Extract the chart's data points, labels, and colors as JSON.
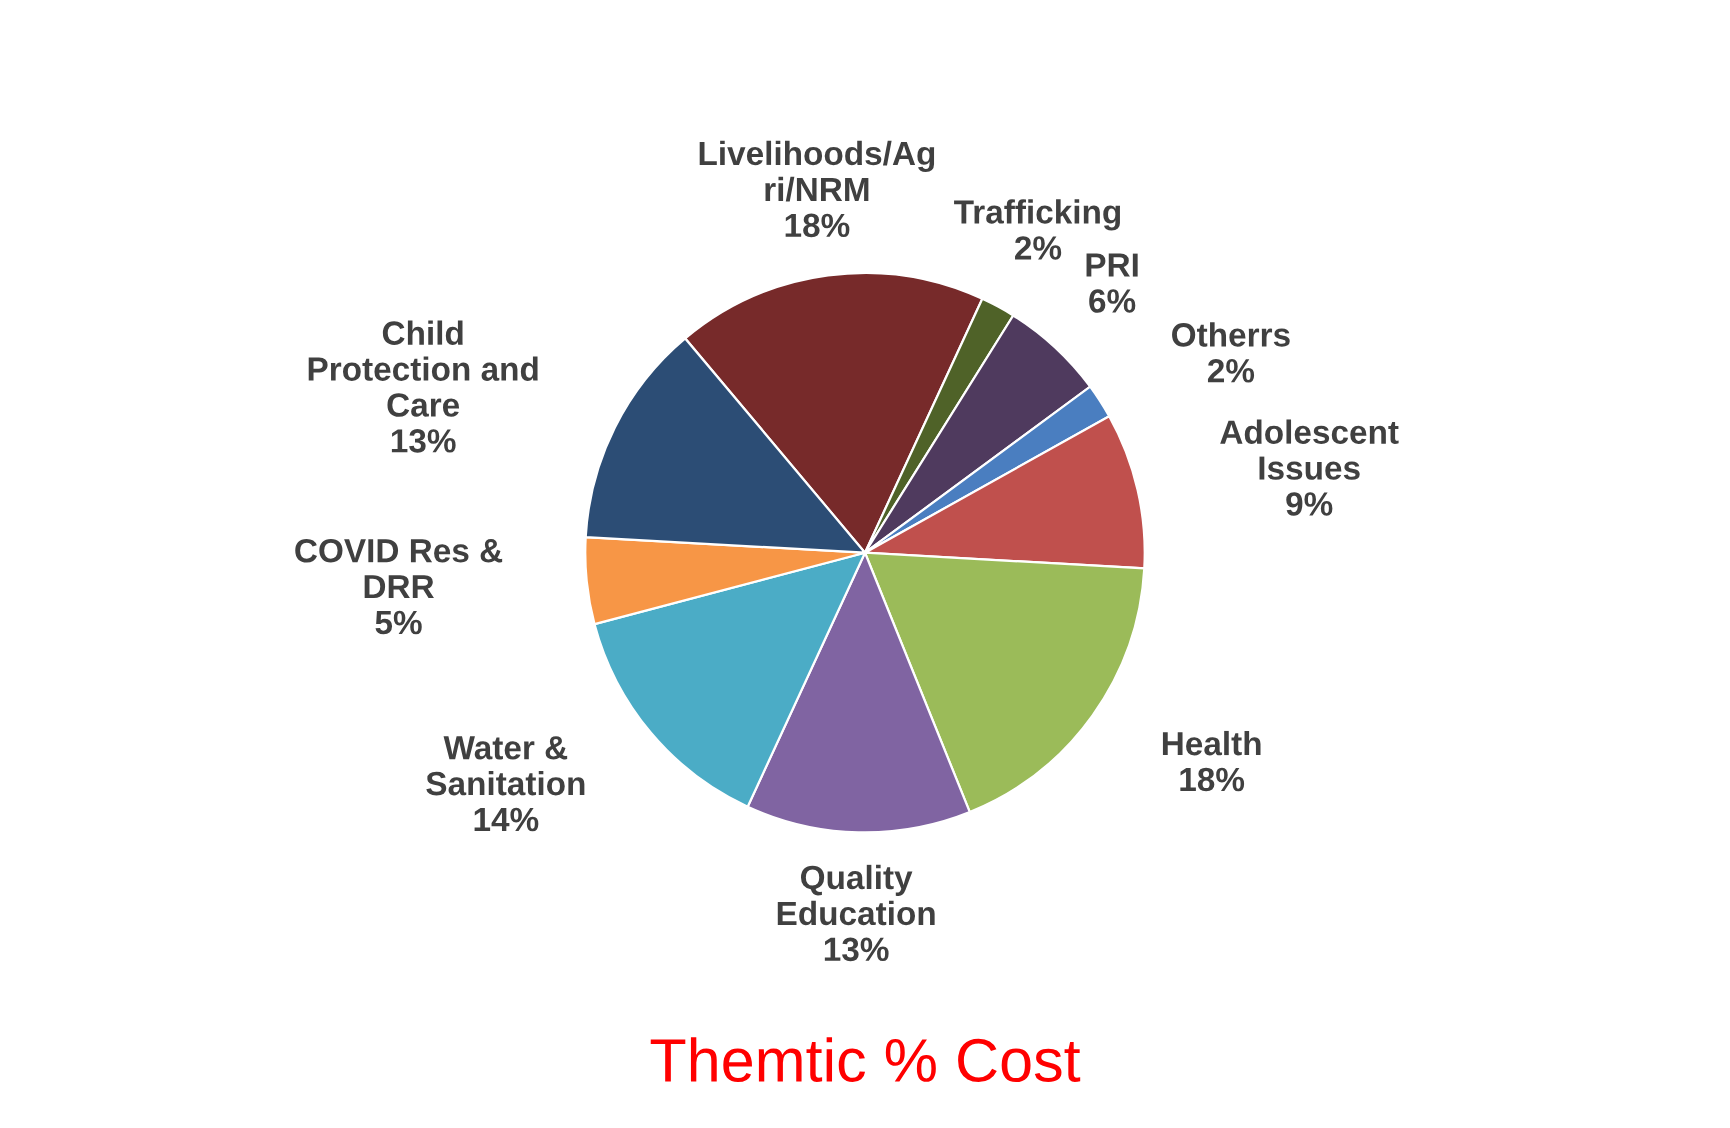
{
  "chart_data": {
    "type": "pie",
    "title": "Themtic % Cost",
    "categories": [
      "Livelihoods/Ag\nri/NRM",
      "Trafficking",
      "PRI",
      "Otherrs",
      "Adolescent\nIssues",
      "Health",
      "Quality\nEducation",
      "Water &\nSanitation",
      "COVID Res &\nDRR",
      "Child\nProtection and\nCare"
    ],
    "values": [
      18,
      2,
      6,
      2,
      9,
      18,
      13,
      14,
      5,
      13
    ],
    "colors": [
      "#772a2a",
      "#4f6228",
      "#4f3a5e",
      "#4a7ec0",
      "#c0504d",
      "#9bbb59",
      "#8064a2",
      "#4bacc6",
      "#f79646",
      "#2c4d75"
    ],
    "value_labels": [
      "18%",
      "2%",
      "6%",
      "2%",
      "9%",
      "18%",
      "13%",
      "14%",
      "5%",
      "13%"
    ],
    "legend": false
  }
}
